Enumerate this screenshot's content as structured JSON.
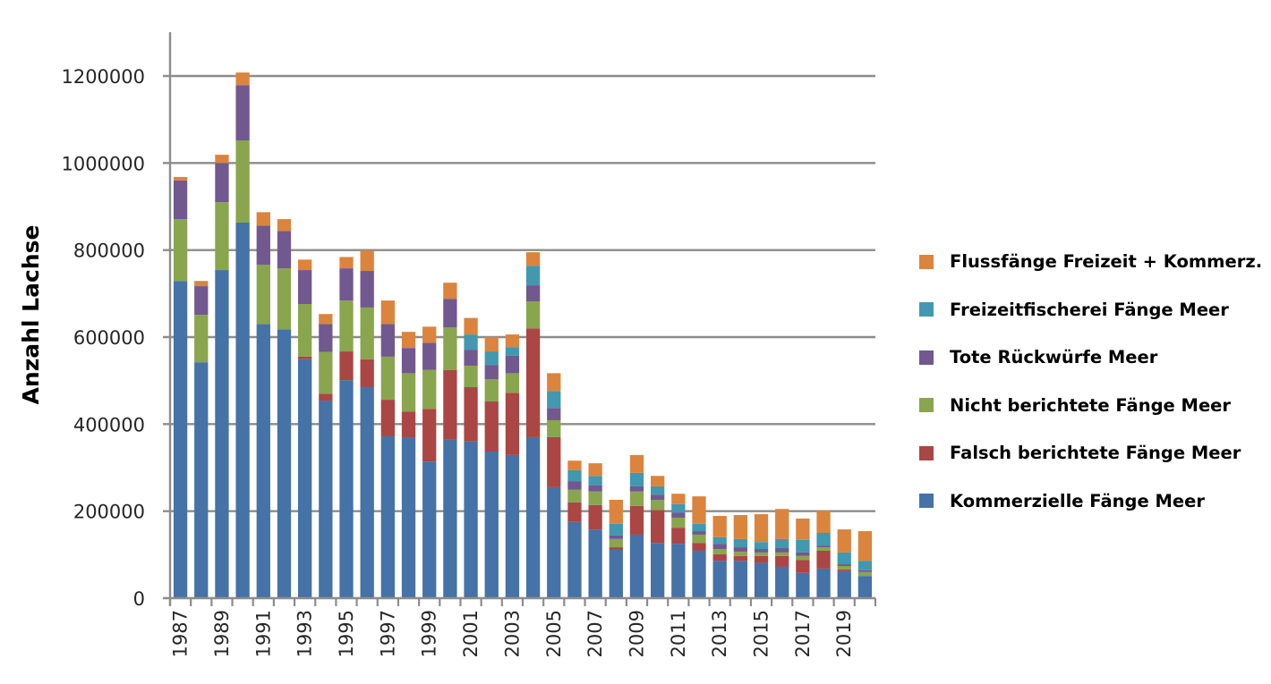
{
  "chart_data": {
    "type": "bar",
    "stacked": true,
    "title": "",
    "xlabel": "",
    "ylabel": "Anzahl Lachse",
    "ylim": [
      0,
      1300000
    ],
    "yticks": [
      0,
      200000,
      400000,
      600000,
      800000,
      1000000,
      1200000
    ],
    "ytick_labels": [
      "0",
      "200000",
      "400000",
      "600000",
      "800000",
      "1000000",
      "1200000"
    ],
    "grid": true,
    "legend_position": "right",
    "categories": [
      "1987",
      "1988",
      "1989",
      "1990",
      "1991",
      "1992",
      "1993",
      "1994",
      "1995",
      "1996",
      "1997",
      "1998",
      "1999",
      "2000",
      "2001",
      "2002",
      "2003",
      "2004",
      "2005",
      "2006",
      "2007",
      "2008",
      "2009",
      "2010",
      "2011",
      "2012",
      "2013",
      "2014",
      "2015",
      "2016",
      "2017",
      "2018",
      "2019",
      "2020"
    ],
    "xtick_labels": [
      "1987",
      "1989",
      "1991",
      "1993",
      "1995",
      "1997",
      "1999",
      "2001",
      "2003",
      "2005",
      "2007",
      "2009",
      "2011",
      "2013",
      "2015",
      "2017",
      "2019"
    ],
    "series": [
      {
        "name": "Kommerzielle Fänge Meer",
        "color": "#4572A7",
        "values": [
          729000,
          542000,
          754000,
          863000,
          630000,
          618000,
          549000,
          454000,
          501000,
          485000,
          372000,
          368000,
          314000,
          364000,
          360000,
          337000,
          329000,
          370000,
          255000,
          175000,
          158000,
          111000,
          146000,
          127000,
          125000,
          109000,
          86000,
          86000,
          81000,
          72000,
          58000,
          68000,
          62000,
          51000
        ]
      },
      {
        "name": "Falsch berichtete Fänge Meer",
        "color": "#AA4643",
        "values": [
          0,
          0,
          0,
          0,
          0,
          0,
          6000,
          16000,
          66000,
          64000,
          84000,
          61000,
          121000,
          160000,
          125000,
          115000,
          143000,
          250000,
          115000,
          45000,
          56000,
          6000,
          66000,
          76000,
          37000,
          18000,
          15000,
          11000,
          16000,
          25000,
          30000,
          41000,
          4000,
          0
        ]
      },
      {
        "name": "Nicht berichtete Fänge Meer",
        "color": "#89A54E",
        "values": [
          142000,
          109000,
          156000,
          189000,
          136000,
          140000,
          121000,
          96000,
          117000,
          119000,
          99000,
          88000,
          90000,
          98000,
          49000,
          51000,
          45000,
          62000,
          39000,
          29000,
          31000,
          19000,
          33000,
          23000,
          23000,
          19000,
          12000,
          10000,
          8000,
          8000,
          9000,
          8000,
          8000,
          9000
        ]
      },
      {
        "name": "Tote Rückwürfe Meer",
        "color": "#71588F",
        "values": [
          89000,
          66000,
          90000,
          127000,
          90000,
          86000,
          78000,
          64000,
          74000,
          84000,
          75000,
          58000,
          62000,
          66000,
          37000,
          33000,
          40000,
          37000,
          28000,
          20000,
          14000,
          8000,
          12000,
          12000,
          12000,
          8000,
          12000,
          10000,
          8000,
          10000,
          8000,
          4000,
          4000,
          4000
        ]
      },
      {
        "name": "Freizeitfischerei Fänge Meer",
        "color": "#4198AF",
        "values": [
          0,
          0,
          0,
          0,
          0,
          0,
          0,
          0,
          0,
          0,
          0,
          0,
          0,
          0,
          35000,
          31000,
          20000,
          45000,
          39000,
          25000,
          22000,
          27000,
          31000,
          19000,
          19000,
          17000,
          15000,
          19000,
          16000,
          21000,
          29000,
          29000,
          27000,
          22000
        ]
      },
      {
        "name": "Flussfänge Freizeit + Kommerz.",
        "color": "#DB843D",
        "values": [
          8000,
          12000,
          19000,
          29000,
          31000,
          27000,
          24000,
          23000,
          26000,
          47000,
          54000,
          37000,
          37000,
          37000,
          38000,
          33000,
          29000,
          31000,
          41000,
          22000,
          29000,
          55000,
          41000,
          24000,
          24000,
          63000,
          49000,
          55000,
          64000,
          69000,
          49000,
          51000,
          53000,
          68000
        ]
      }
    ],
    "legend_order": [
      "Flussfänge Freizeit + Kommerz.",
      "Freizeitfischerei Fänge Meer",
      "Tote Rückwürfe Meer",
      "Nicht berichtete Fänge Meer",
      "Falsch berichtete Fänge Meer",
      "Kommerzielle Fänge Meer"
    ]
  },
  "colors": {
    "gridline": "#8c8c8c",
    "axis": "#8c8c8c"
  }
}
